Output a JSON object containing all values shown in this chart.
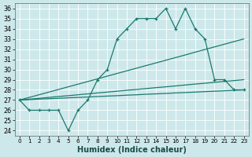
{
  "xlabel": "Humidex (Indice chaleur)",
  "bg_color": "#cde8ea",
  "grid_color": "#b0d8dc",
  "line_color": "#1a7a6e",
  "xlim": [
    -0.5,
    23.5
  ],
  "ylim": [
    23.5,
    36.5
  ],
  "yticks": [
    24,
    25,
    26,
    27,
    28,
    29,
    30,
    31,
    32,
    33,
    34,
    35,
    36
  ],
  "xticks": [
    0,
    1,
    2,
    3,
    4,
    5,
    6,
    7,
    8,
    9,
    10,
    11,
    12,
    13,
    14,
    15,
    16,
    17,
    18,
    19,
    20,
    21,
    22,
    23
  ],
  "main_series": [
    27,
    26,
    26,
    26,
    26,
    24,
    26,
    27,
    29,
    30,
    33,
    34,
    35,
    35,
    35,
    36,
    34,
    36,
    34,
    33,
    29,
    29,
    28,
    28
  ],
  "line2": [
    27,
    27.26,
    27.52,
    27.78,
    28.04,
    28.3,
    28.56,
    28.82,
    29.08,
    29.35,
    29.61,
    29.87,
    30.13,
    30.39,
    30.65,
    30.91,
    31.17,
    31.43,
    31.7,
    31.96,
    32.22,
    32.48,
    32.74,
    33.0
  ],
  "line3": [
    27,
    27.09,
    27.17,
    27.26,
    27.35,
    27.43,
    27.52,
    27.61,
    27.7,
    27.78,
    27.87,
    27.96,
    28.04,
    28.13,
    28.22,
    28.3,
    28.39,
    28.48,
    28.57,
    28.65,
    28.74,
    28.83,
    28.91,
    29.0
  ],
  "line4": [
    27,
    27.04,
    27.09,
    27.13,
    27.17,
    27.22,
    27.26,
    27.3,
    27.35,
    27.39,
    27.43,
    27.48,
    27.52,
    27.57,
    27.61,
    27.65,
    27.7,
    27.74,
    27.78,
    27.83,
    27.87,
    27.91,
    27.96,
    28.0
  ]
}
